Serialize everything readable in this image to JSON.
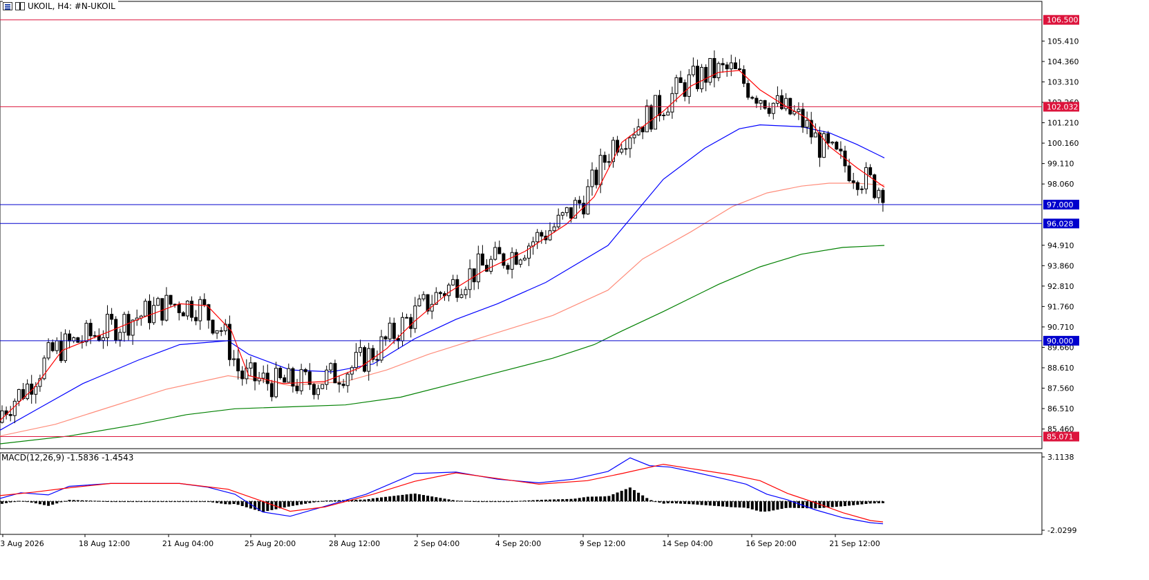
{
  "header": {
    "symbol_label": "UKOIL, H4:  #N-UKOIL",
    "icons": [
      "bar-chart-icon",
      "candlestick-icon"
    ]
  },
  "colors": {
    "bull_body": "#ffffff",
    "bear_body": "#000000",
    "wick": "#000000",
    "ma_fast": "#ff0000",
    "ma_medium": "#0000ff",
    "ma_slow": "#ff8c7a",
    "ma_long": "#008000",
    "hline_red": "#dc143c",
    "hline_blue": "#0000cd",
    "macd_line": "#0000ff",
    "signal_line": "#ff0000",
    "histogram": "#000000"
  },
  "chart_data": {
    "type": "candlestick",
    "symbol": "UKOIL",
    "timeframe": "H4",
    "price_axis": {
      "range": [
        84.45,
        107.45
      ],
      "ticks": [
        "105.410",
        "104.360",
        "103.310",
        "102.260",
        "101.210",
        "100.160",
        "99.110",
        "98.060",
        "94.910",
        "93.860",
        "92.810",
        "91.760",
        "90.710",
        "89.660",
        "88.610",
        "87.560",
        "86.510",
        "85.460"
      ]
    },
    "x_axis_labels": [
      "3 Aug 2026",
      "18 Aug 12:00",
      "21 Aug 04:00",
      "25 Aug 20:00",
      "28 Aug 12:00",
      "2 Sep 04:00",
      "4 Sep 20:00",
      "9 Sep 12:00",
      "14 Sep 04:00",
      "16 Sep 20:00",
      "21 Sep 12:00"
    ],
    "horizontal_lines": [
      {
        "price": 106.5,
        "label": "106.500",
        "color": "#dc143c"
      },
      {
        "price": 102.032,
        "label": "102.032",
        "color": "#dc143c"
      },
      {
        "price": 97.0,
        "label": "97.000",
        "color": "#0000cd"
      },
      {
        "price": 96.028,
        "label": "96.028",
        "color": "#0000cd"
      },
      {
        "price": 90.0,
        "label": "90.000",
        "color": "#0000cd"
      },
      {
        "price": 85.071,
        "label": "85.071",
        "color": "#dc143c"
      }
    ],
    "moving_average_keypoints": {
      "fast": [
        [
          0,
          85.9
        ],
        [
          50,
          87.6
        ],
        [
          90,
          89.5
        ],
        [
          160,
          90.5
        ],
        [
          200,
          91.1
        ],
        [
          260,
          91.9
        ],
        [
          300,
          91.8
        ],
        [
          335,
          90.5
        ],
        [
          360,
          88.2
        ],
        [
          410,
          87.8
        ],
        [
          470,
          87.9
        ],
        [
          520,
          88.6
        ],
        [
          560,
          89.6
        ],
        [
          600,
          91.0
        ],
        [
          650,
          92.5
        ],
        [
          700,
          93.6
        ],
        [
          760,
          94.6
        ],
        [
          820,
          96.0
        ],
        [
          860,
          97.4
        ],
        [
          900,
          100.2
        ],
        [
          960,
          101.8
        ],
        [
          1000,
          103.1
        ],
        [
          1040,
          103.8
        ],
        [
          1070,
          103.9
        ],
        [
          1100,
          102.9
        ],
        [
          1140,
          102.0
        ],
        [
          1170,
          101.4
        ],
        [
          1200,
          100.0
        ],
        [
          1240,
          98.9
        ],
        [
          1280,
          97.9
        ]
      ],
      "medium": [
        [
          0,
          85.4
        ],
        [
          60,
          86.6
        ],
        [
          120,
          87.8
        ],
        [
          200,
          89.0
        ],
        [
          260,
          89.8
        ],
        [
          330,
          90.0
        ],
        [
          360,
          89.3
        ],
        [
          420,
          88.5
        ],
        [
          480,
          88.4
        ],
        [
          540,
          88.8
        ],
        [
          600,
          90.1
        ],
        [
          660,
          91.1
        ],
        [
          720,
          91.9
        ],
        [
          790,
          93.0
        ],
        [
          880,
          94.9
        ],
        [
          920,
          96.6
        ],
        [
          960,
          98.3
        ],
        [
          1020,
          99.9
        ],
        [
          1070,
          100.9
        ],
        [
          1100,
          101.1
        ],
        [
          1160,
          101.0
        ],
        [
          1200,
          100.7
        ],
        [
          1240,
          100.1
        ],
        [
          1280,
          99.4
        ]
      ],
      "slow": [
        [
          0,
          85.1
        ],
        [
          80,
          85.7
        ],
        [
          160,
          86.6
        ],
        [
          240,
          87.5
        ],
        [
          330,
          88.2
        ],
        [
          370,
          88.0
        ],
        [
          420,
          87.7
        ],
        [
          500,
          87.9
        ],
        [
          560,
          88.5
        ],
        [
          620,
          89.3
        ],
        [
          700,
          90.2
        ],
        [
          800,
          91.3
        ],
        [
          880,
          92.6
        ],
        [
          930,
          94.2
        ],
        [
          1000,
          95.6
        ],
        [
          1060,
          96.9
        ],
        [
          1110,
          97.6
        ],
        [
          1160,
          97.95
        ],
        [
          1200,
          98.1
        ],
        [
          1240,
          98.1
        ],
        [
          1280,
          98.0
        ]
      ],
      "long": [
        [
          0,
          84.7
        ],
        [
          100,
          85.1
        ],
        [
          200,
          85.7
        ],
        [
          270,
          86.2
        ],
        [
          340,
          86.5
        ],
        [
          420,
          86.6
        ],
        [
          500,
          86.7
        ],
        [
          580,
          87.1
        ],
        [
          680,
          88.0
        ],
        [
          800,
          89.1
        ],
        [
          860,
          89.8
        ],
        [
          900,
          90.5
        ],
        [
          960,
          91.5
        ],
        [
          1040,
          92.9
        ],
        [
          1100,
          93.8
        ],
        [
          1160,
          94.45
        ],
        [
          1220,
          94.8
        ],
        [
          1280,
          94.9
        ]
      ]
    },
    "macd": {
      "label": "MACD(12,26,9) -1.5836 -1.4543",
      "range": [
        -2.0299,
        3.1138
      ],
      "ticks": [
        "3.1138",
        "-2.0299"
      ],
      "macd_keypoints": [
        [
          0,
          0.2
        ],
        [
          30,
          0.6
        ],
        [
          70,
          0.45
        ],
        [
          100,
          1.05
        ],
        [
          160,
          1.25
        ],
        [
          260,
          1.25
        ],
        [
          300,
          1.0
        ],
        [
          340,
          0.5
        ],
        [
          380,
          -0.75
        ],
        [
          420,
          -1.05
        ],
        [
          470,
          -0.35
        ],
        [
          530,
          0.5
        ],
        [
          600,
          1.95
        ],
        [
          660,
          2.05
        ],
        [
          720,
          1.55
        ],
        [
          780,
          1.3
        ],
        [
          830,
          1.55
        ],
        [
          880,
          2.1
        ],
        [
          912,
          3.05
        ],
        [
          940,
          2.5
        ],
        [
          970,
          2.4
        ],
        [
          1000,
          2.1
        ],
        [
          1050,
          1.55
        ],
        [
          1080,
          1.2
        ],
        [
          1110,
          0.5
        ],
        [
          1140,
          0.1
        ],
        [
          1180,
          -0.6
        ],
        [
          1220,
          -1.15
        ],
        [
          1260,
          -1.5
        ],
        [
          1278,
          -1.58
        ]
      ],
      "signal_keypoints": [
        [
          0,
          0.4
        ],
        [
          50,
          0.65
        ],
        [
          100,
          0.95
        ],
        [
          160,
          1.25
        ],
        [
          260,
          1.25
        ],
        [
          330,
          0.85
        ],
        [
          380,
          0.0
        ],
        [
          420,
          -0.7
        ],
        [
          470,
          -0.4
        ],
        [
          540,
          0.5
        ],
        [
          600,
          1.4
        ],
        [
          660,
          2.0
        ],
        [
          720,
          1.6
        ],
        [
          780,
          1.2
        ],
        [
          850,
          1.45
        ],
        [
          900,
          1.95
        ],
        [
          960,
          2.6
        ],
        [
          1000,
          2.3
        ],
        [
          1060,
          1.85
        ],
        [
          1100,
          1.45
        ],
        [
          1140,
          0.55
        ],
        [
          1180,
          -0.1
        ],
        [
          1220,
          -0.8
        ],
        [
          1260,
          -1.35
        ],
        [
          1278,
          -1.45
        ]
      ]
    }
  }
}
